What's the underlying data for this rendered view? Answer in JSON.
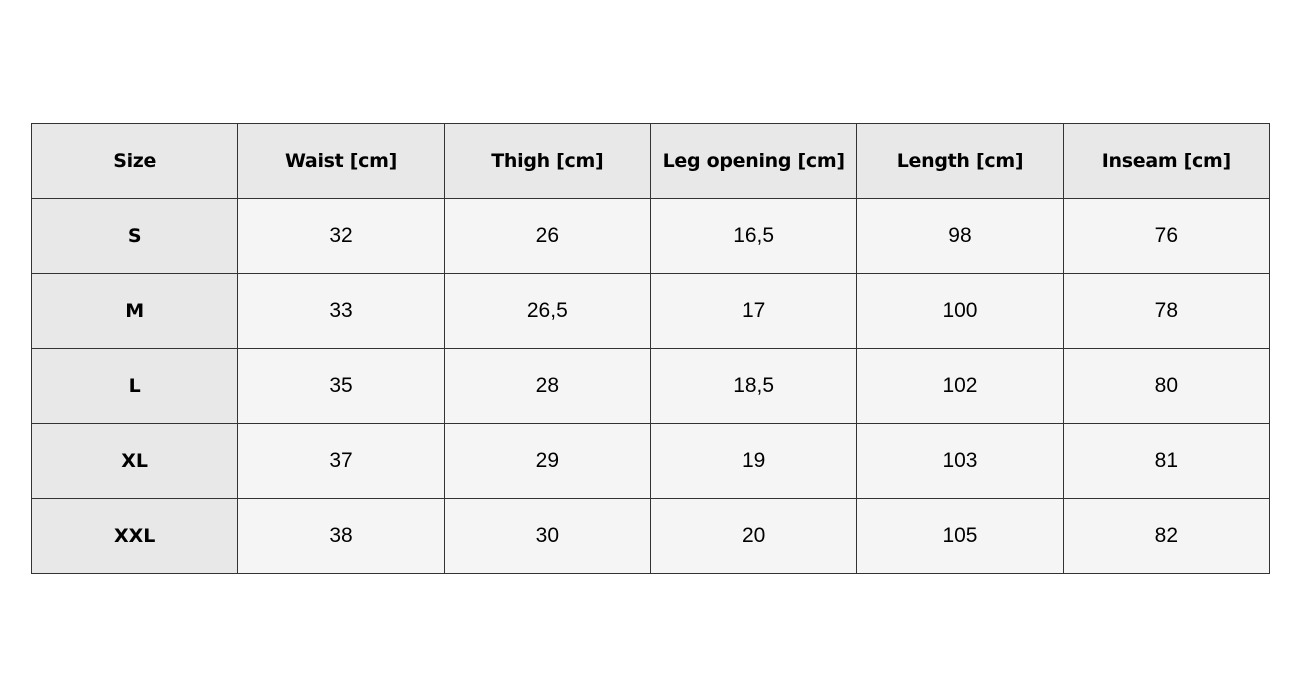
{
  "table": {
    "headers": [
      "Size",
      "Waist [cm]",
      "Thigh [cm]",
      "Leg opening [cm]",
      "Length [cm]",
      "Inseam [cm]"
    ],
    "rows": [
      [
        "S",
        "32",
        "26",
        "16,5",
        "98",
        "76"
      ],
      [
        "M",
        "33",
        "26,5",
        "17",
        "100",
        "78"
      ],
      [
        "L",
        "35",
        "28",
        "18,5",
        "102",
        "80"
      ],
      [
        "XL",
        "37",
        "29",
        "19",
        "103",
        "81"
      ],
      [
        "XXL",
        "38",
        "30",
        "20",
        "105",
        "82"
      ]
    ]
  },
  "colors": {
    "header_bg": "#e8e8e8",
    "cell_bg": "#f5f5f5",
    "border": "#333333"
  }
}
